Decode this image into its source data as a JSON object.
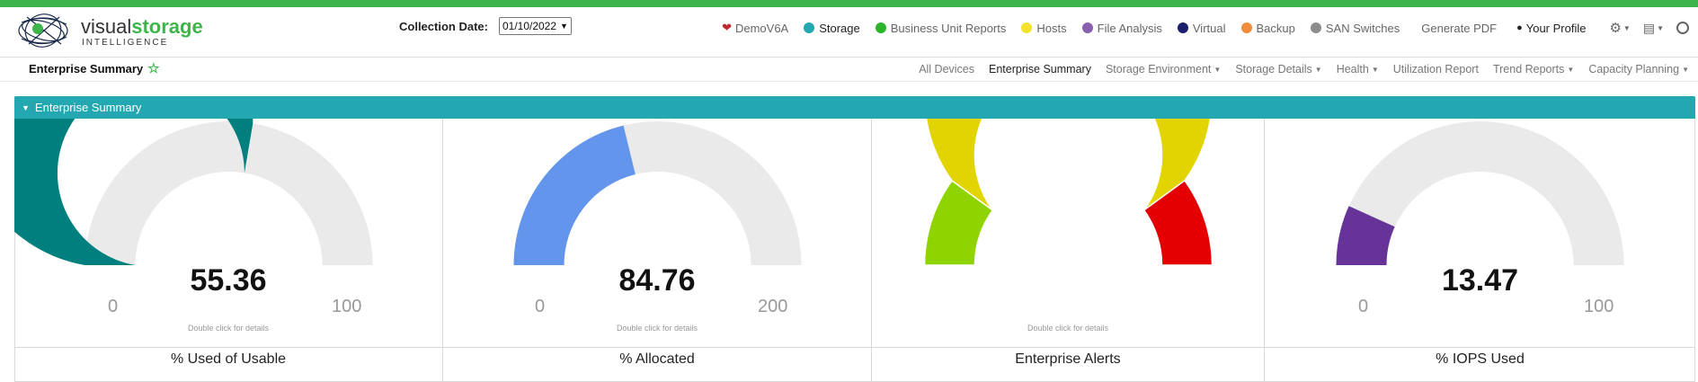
{
  "header": {
    "logo_main_1": "visual",
    "logo_main_2": "storage",
    "logo_sub": "INTELLIGENCE",
    "collection_label": "Collection Date:",
    "collection_value": "01/10/2022"
  },
  "topnav": {
    "items": [
      {
        "label": "DemoV6A",
        "color": "#c0272d",
        "kind": "heart"
      },
      {
        "label": "Storage",
        "color": "#23a7b0",
        "kind": "dot",
        "active": true
      },
      {
        "label": "Business Unit Reports",
        "color": "#2db52a",
        "kind": "dot"
      },
      {
        "label": "Hosts",
        "color": "#f2e22b",
        "kind": "dot"
      },
      {
        "label": "File Analysis",
        "color": "#8b5fb0",
        "kind": "dot"
      },
      {
        "label": "Virtual",
        "color": "#1b1f6e",
        "kind": "dot"
      },
      {
        "label": "Backup",
        "color": "#f08c3a",
        "kind": "dot"
      },
      {
        "label": "SAN Switches",
        "color": "#8c8c8c",
        "kind": "dot"
      }
    ],
    "generate_pdf": "Generate PDF",
    "profile": "Your Profile"
  },
  "subbar": {
    "page_title": "Enterprise Summary",
    "nav": [
      {
        "label": "All Devices",
        "dropdown": false
      },
      {
        "label": "Enterprise Summary",
        "dropdown": false,
        "active": true
      },
      {
        "label": "Storage Environment",
        "dropdown": true
      },
      {
        "label": "Storage Details",
        "dropdown": true
      },
      {
        "label": "Health",
        "dropdown": true
      },
      {
        "label": "Utilization Report",
        "dropdown": false
      },
      {
        "label": "Trend Reports",
        "dropdown": true
      },
      {
        "label": "Capacity Planning",
        "dropdown": true
      }
    ]
  },
  "panel": {
    "title": "Enterprise Summary"
  },
  "gauges": [
    {
      "label": "% Used of Usable",
      "value": 55.36,
      "value_text": "55.36",
      "min": 0,
      "max": 100,
      "min_text": "0",
      "max_text": "100",
      "hint": "Double click for details",
      "color": "#007f7f"
    },
    {
      "label": "% Allocated",
      "value": 84.76,
      "value_text": "84.76",
      "min": 0,
      "max": 200,
      "min_text": "0",
      "max_text": "200",
      "hint": "Double click for details",
      "color": "#6495ed"
    },
    {
      "label": "Enterprise Alerts",
      "hint": "Double click for details",
      "bands": [
        {
          "fraction": 0.2,
          "color": "#8fd400"
        },
        {
          "fraction": 0.6,
          "color": "#e1d400"
        },
        {
          "fraction": 0.2,
          "color": "#e40000"
        }
      ]
    },
    {
      "label": "% IOPS Used",
      "value": 13.47,
      "value_text": "13.47",
      "min": 0,
      "max": 100,
      "min_text": "0",
      "max_text": "100",
      "hint": "",
      "color": "#663399"
    }
  ],
  "colors": {
    "accent_green": "#3db54a",
    "panel_head": "#23a7b0",
    "gauge_track": "#eaeaea"
  }
}
